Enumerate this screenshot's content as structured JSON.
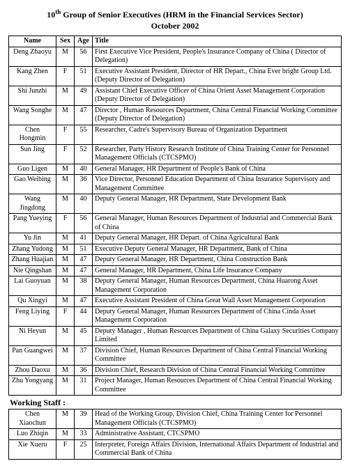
{
  "header": {
    "title_prefix": "10",
    "title_suffix": " Group of Senior Executives (HRM in the Financial Services Sector)",
    "ordinal": "th",
    "date": "October 2002"
  },
  "columns": {
    "name": "Name",
    "sex": "Sex",
    "age": "Age",
    "title": "Title"
  },
  "rows": [
    {
      "name": "Deng Zhaoyu",
      "sex": "M",
      "age": "56",
      "title": "First Executive Vice President, People's Insurance Company of China ( Director of Delegation)"
    },
    {
      "name": "Kang Zhen",
      "sex": "F",
      "age": "51",
      "title": "Executive Assistant President, Director of HR Depart., China Ever bright Group Ltd. (Deputy Director of Delegation)"
    },
    {
      "name": "Shi Junzhi",
      "sex": "M",
      "age": "49",
      "title": "Assistant Chief Executive Officer of China Orient Asset Management Corporation (Deputy Director of Delegation)"
    },
    {
      "name": "Wang Songhe",
      "sex": "M",
      "age": "47",
      "title": "Director ,  Human Resources Department, China Central Financial Working Committee (Deputy Director of Delegation)"
    },
    {
      "name": "Chen Hongmin",
      "sex": "F",
      "age": "55",
      "title": "Researcher, Cadre's Supervisory Bureau of Organization Department"
    },
    {
      "name": "Sun Jing",
      "sex": "F",
      "age": "52",
      "title": "Researcher, Party History Research Institute of China Training Center for Personnel Management Officials (CTCSPMO)"
    },
    {
      "name": "Guo Ligen",
      "sex": "M",
      "age": "40",
      "title": "General Manager, HR Department of People's Bank of China"
    },
    {
      "name": "Gao Weibing",
      "sex": "M",
      "age": "36",
      "title": "Vice Director, Personnel Education Department of China Insurance Supervisory and Management Committee"
    },
    {
      "name": "Wang Jingdong",
      "sex": "M",
      "age": "40",
      "title": "Deputy General Manager, HR Department, State Development Bank"
    },
    {
      "name": "Pang Yueying",
      "sex": "F",
      "age": "56",
      "title": "General Manager, Human Resources Department of Industrial and Commercial Bank of China"
    },
    {
      "name": "Yu Jin",
      "sex": "M",
      "age": "41",
      "title": "Deputy General Manager, HR Depart. of China Agricultural Bank"
    },
    {
      "name": "Zhang Yudong",
      "sex": "M",
      "age": "51",
      "title": "Executive Deputy General Manager, HR Department, Bank of China"
    },
    {
      "name": "Zhang Huajian",
      "sex": "M",
      "age": "47",
      "title": "Deputy General Manager, HR Department,  China Construction Bank"
    },
    {
      "name": "Nie Qingshan",
      "sex": "M",
      "age": "47",
      "title": "General Manager, HR Department, China Life Insurance Company"
    },
    {
      "name": "Lai Guoyuan",
      "sex": "M",
      "age": "38",
      "title": "Deputy General Manager, Human Resources Department, China Huarong Asset Management Corporation"
    },
    {
      "name": "Qu Xingyi",
      "sex": "M",
      "age": "47",
      "title": "Executive Assistant President of China Great Wall Asset Management Corporation"
    },
    {
      "name": "Feng Liying",
      "sex": "F",
      "age": "44",
      "title": "Deputy General Manager, Human Resources Department of China Cinda Asset Management Corporation"
    },
    {
      "name": "Ni Heyun",
      "sex": "M",
      "age": "45",
      "title": "Deputy Manager , Human Resources Department of China Galaxy Securities Company Limited"
    },
    {
      "name": "Pan Guangwei",
      "sex": "M",
      "age": "37",
      "title": "Division Chief,  Human Resources Department of China Central Financial Working Committee"
    },
    {
      "name": "Zhou Daoxu",
      "sex": "M",
      "age": "36",
      "title": "Division Chief, Research Division of China Central Financial Working Committee"
    },
    {
      "name": "Zhu Yongyang",
      "sex": "M",
      "age": "31",
      "title": "Project Manager,  Human Resources Department of China Central Financial Working Committee"
    }
  ],
  "staff_header": "Working Staff :",
  "staff_rows": [
    {
      "name": "Chen Xiaochun",
      "sex": "M",
      "age": "39",
      "title": "Head of the Working Group, Division Chief, China Training Center for Personnel Management Officials (CTCSPMO)"
    },
    {
      "name": "Luo Zhiqin",
      "sex": "M",
      "age": "33",
      "title": "Administrative Assistant, CTCSPMO"
    },
    {
      "name": "Xie Xueru",
      "sex": "F",
      "age": "25",
      "title": "Interpreter, Foreign Affairs Division, International Affairs Department of Industrial and Commercial Bank of China"
    }
  ]
}
